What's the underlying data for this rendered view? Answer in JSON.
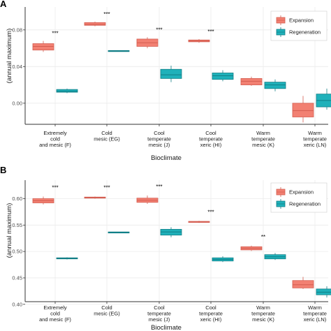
{
  "colors": {
    "expansion_fill": "#F28072",
    "expansion_line": "#D45D50",
    "regeneration_fill": "#1FB1BA",
    "regeneration_line": "#117E86",
    "grid": "#EBEBEB",
    "axis": "#333333"
  },
  "chart_data": [
    {
      "type": "box",
      "panel_label": "A",
      "ylabel": "(annual maximum)",
      "xlabel": "Bioclimate",
      "categories": [
        "Extremely cold and mesic (F)",
        "Cold mesic (EG)",
        "Cool temperate mesic (J)",
        "Cool temperate xeric (HI)",
        "Warm temperate mesic (K)",
        "Warm temperate xeric (LN)"
      ],
      "category_lines": [
        [
          "Extremely",
          "cold",
          "and mesic (F)"
        ],
        [
          "Cold",
          "mesic (EG)"
        ],
        [
          "Cool",
          "temperate",
          "mesic (J)"
        ],
        [
          "Cool",
          "temperate",
          "xeric (HI)"
        ],
        [
          "Warm",
          "temperate",
          "mesic (K)"
        ],
        [
          "Warm",
          "temperate",
          "xeric (LN)"
        ]
      ],
      "ylim": [
        -0.023,
        0.105
      ],
      "yticks": [
        0.0,
        0.04,
        0.08
      ],
      "ytick_labels": [
        "0.00",
        "0.04",
        "0.08"
      ],
      "legend": {
        "position": "top-right",
        "entries": [
          "Expansion",
          "Regeneration"
        ]
      },
      "significance": [
        "***",
        "***",
        "***",
        "***",
        "",
        ""
      ],
      "series": [
        {
          "name": "Expansion",
          "boxes": [
            {
              "min": 0.056,
              "q1": 0.058,
              "median": 0.062,
              "q3": 0.065,
              "max": 0.068
            },
            {
              "min": 0.084,
              "q1": 0.085,
              "median": 0.086,
              "q3": 0.088,
              "max": 0.089
            },
            {
              "min": 0.06,
              "q1": 0.062,
              "median": 0.066,
              "q3": 0.07,
              "max": 0.072
            },
            {
              "min": 0.066,
              "q1": 0.067,
              "median": 0.068,
              "q3": 0.069,
              "max": 0.07
            },
            {
              "min": 0.019,
              "q1": 0.02,
              "median": 0.024,
              "q3": 0.027,
              "max": 0.029
            },
            {
              "min": -0.021,
              "q1": -0.015,
              "median": -0.008,
              "q3": 0.0,
              "max": 0.008
            }
          ]
        },
        {
          "name": "Regeneration",
          "boxes": [
            {
              "min": 0.011,
              "q1": 0.012,
              "median": 0.013,
              "q3": 0.015,
              "max": 0.016
            },
            {
              "min": 0.0565,
              "q1": 0.0565,
              "median": 0.057,
              "q3": 0.0575,
              "max": 0.0575
            },
            {
              "min": 0.023,
              "q1": 0.027,
              "median": 0.031,
              "q3": 0.037,
              "max": 0.041
            },
            {
              "min": 0.024,
              "q1": 0.026,
              "median": 0.03,
              "q3": 0.033,
              "max": 0.036
            },
            {
              "min": 0.013,
              "q1": 0.016,
              "median": 0.02,
              "q3": 0.023,
              "max": 0.026
            },
            {
              "min": -0.007,
              "q1": -0.004,
              "median": 0.003,
              "q3": 0.01,
              "max": 0.016
            }
          ]
        }
      ]
    },
    {
      "type": "box",
      "panel_label": "B",
      "ylabel": "(annual maximum)",
      "xlabel": "Bioclimate",
      "categories": [
        "Extremely cold and mesic (F)",
        "Cold mesic (EG)",
        "Cool temperate mesic (J)",
        "Cool temperate xeric (HI)",
        "Warm temperate mesic (K)",
        "Warm temperate xeric (LN)"
      ],
      "category_lines": [
        [
          "Extremely",
          "cold",
          "and mesic (F)"
        ],
        [
          "Cold",
          "mesic (EG)"
        ],
        [
          "Cool",
          "temperate",
          "mesic (J)"
        ],
        [
          "Cool",
          "temperate",
          "xeric (HI)"
        ],
        [
          "Warm",
          "temperate",
          "mesic (K)"
        ],
        [
          "Warm",
          "temperate",
          "xeric (LN)"
        ]
      ],
      "ylim": [
        0.405,
        0.635
      ],
      "yticks": [
        0.4,
        0.45,
        0.5,
        0.55,
        0.6
      ],
      "ytick_labels": [
        "0.40",
        "0.45",
        "0.50",
        "0.55",
        "0.60"
      ],
      "legend": {
        "position": "top-right",
        "entries": [
          "Expansion",
          "Regeneration"
        ]
      },
      "significance": [
        "***",
        "***",
        "***",
        "***",
        "**",
        ""
      ],
      "series": [
        {
          "name": "Expansion",
          "boxes": [
            {
              "min": 0.589,
              "q1": 0.592,
              "median": 0.596,
              "q3": 0.6,
              "max": 0.604
            },
            {
              "min": 0.6,
              "q1": 0.601,
              "median": 0.602,
              "q3": 0.603,
              "max": 0.604
            },
            {
              "min": 0.59,
              "q1": 0.593,
              "median": 0.597,
              "q3": 0.601,
              "max": 0.606
            },
            {
              "min": 0.554,
              "q1": 0.555,
              "median": 0.556,
              "q3": 0.557,
              "max": 0.558
            },
            {
              "min": 0.501,
              "q1": 0.503,
              "median": 0.506,
              "q3": 0.509,
              "max": 0.511
            },
            {
              "min": 0.429,
              "q1": 0.431,
              "median": 0.437,
              "q3": 0.445,
              "max": 0.452
            }
          ]
        },
        {
          "name": "Regeneration",
          "boxes": [
            {
              "min": 0.485,
              "q1": 0.486,
              "median": 0.487,
              "q3": 0.488,
              "max": 0.489
            },
            {
              "min": 0.535,
              "q1": 0.535,
              "median": 0.536,
              "q3": 0.537,
              "max": 0.537
            },
            {
              "min": 0.527,
              "q1": 0.531,
              "median": 0.537,
              "q3": 0.542,
              "max": 0.546
            },
            {
              "min": 0.48,
              "q1": 0.482,
              "median": 0.485,
              "q3": 0.488,
              "max": 0.491
            },
            {
              "min": 0.484,
              "q1": 0.486,
              "median": 0.49,
              "q3": 0.494,
              "max": 0.497
            },
            {
              "min": 0.413,
              "q1": 0.418,
              "median": 0.423,
              "q3": 0.429,
              "max": 0.434
            }
          ]
        }
      ]
    }
  ]
}
